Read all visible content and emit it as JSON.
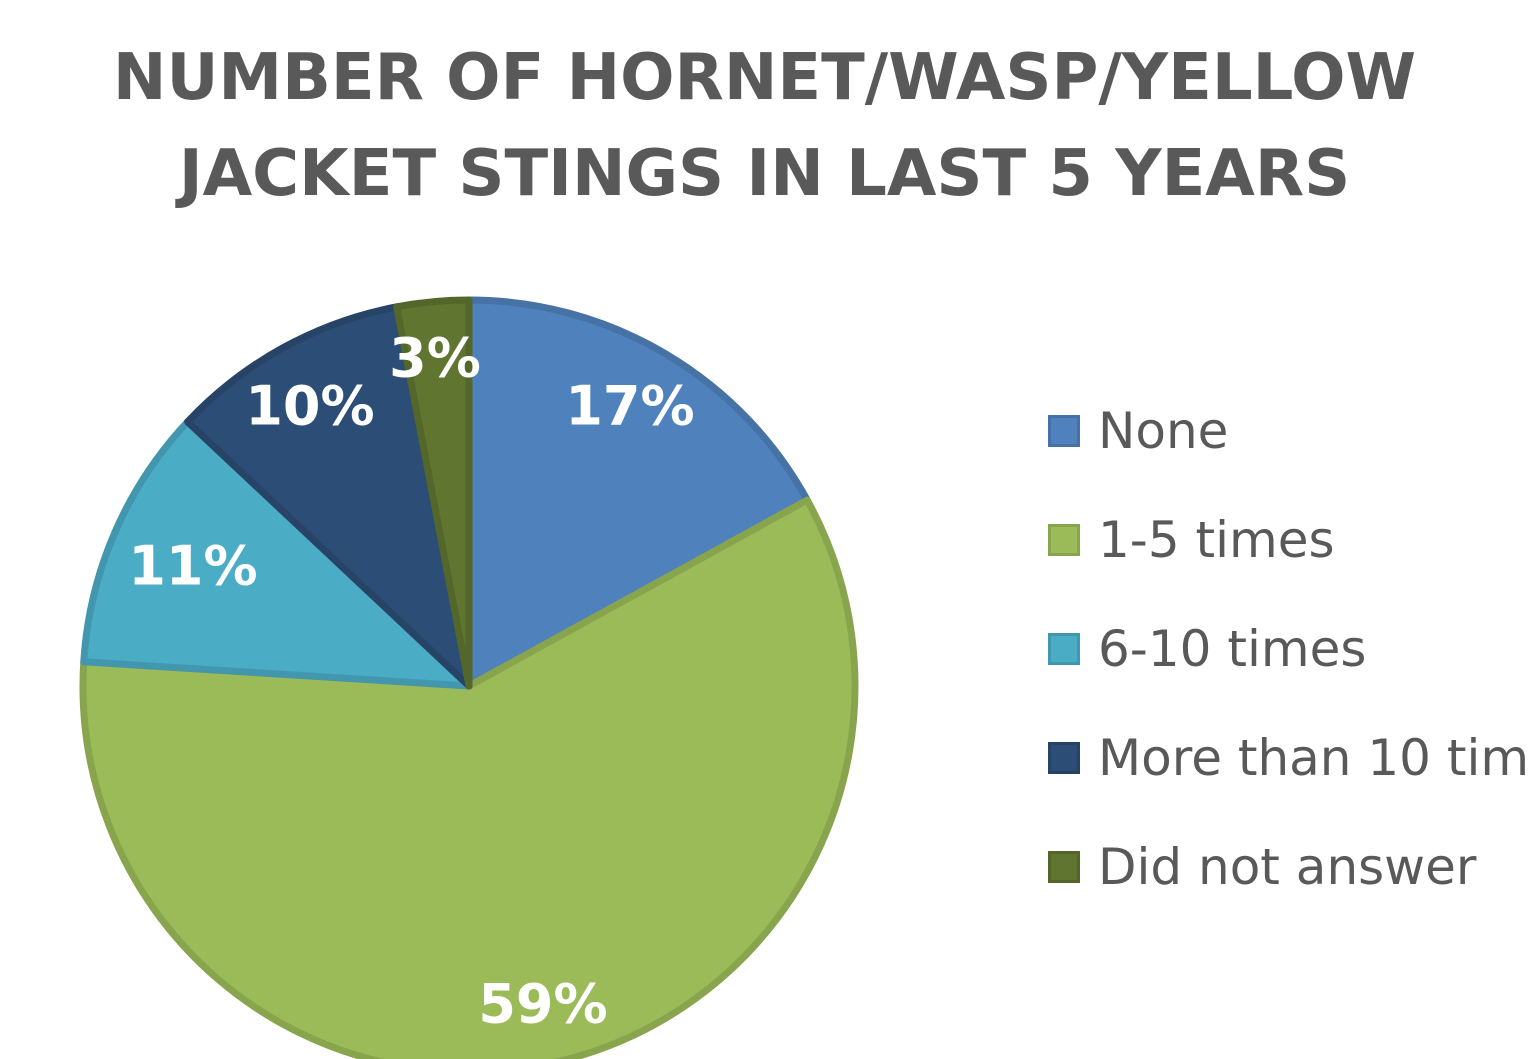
{
  "chart_data": {
    "type": "pie",
    "title": [
      "NUMBER OF HORNET/WASP/YELLOW",
      "JACKET STINGS IN LAST 5 YEARS"
    ],
    "categories": [
      "None",
      "1-5 times",
      "6-10 times",
      "More than 10 tim",
      "Did not answer"
    ],
    "values": [
      17,
      59,
      11,
      10,
      3
    ],
    "labels": [
      "17%",
      "59%",
      "11%",
      "10%",
      "3%"
    ],
    "colors": [
      "#4F81BD",
      "#9BBB59",
      "#4BACC6",
      "#2C4D75",
      "#5F7530"
    ],
    "legend_position": "right"
  }
}
